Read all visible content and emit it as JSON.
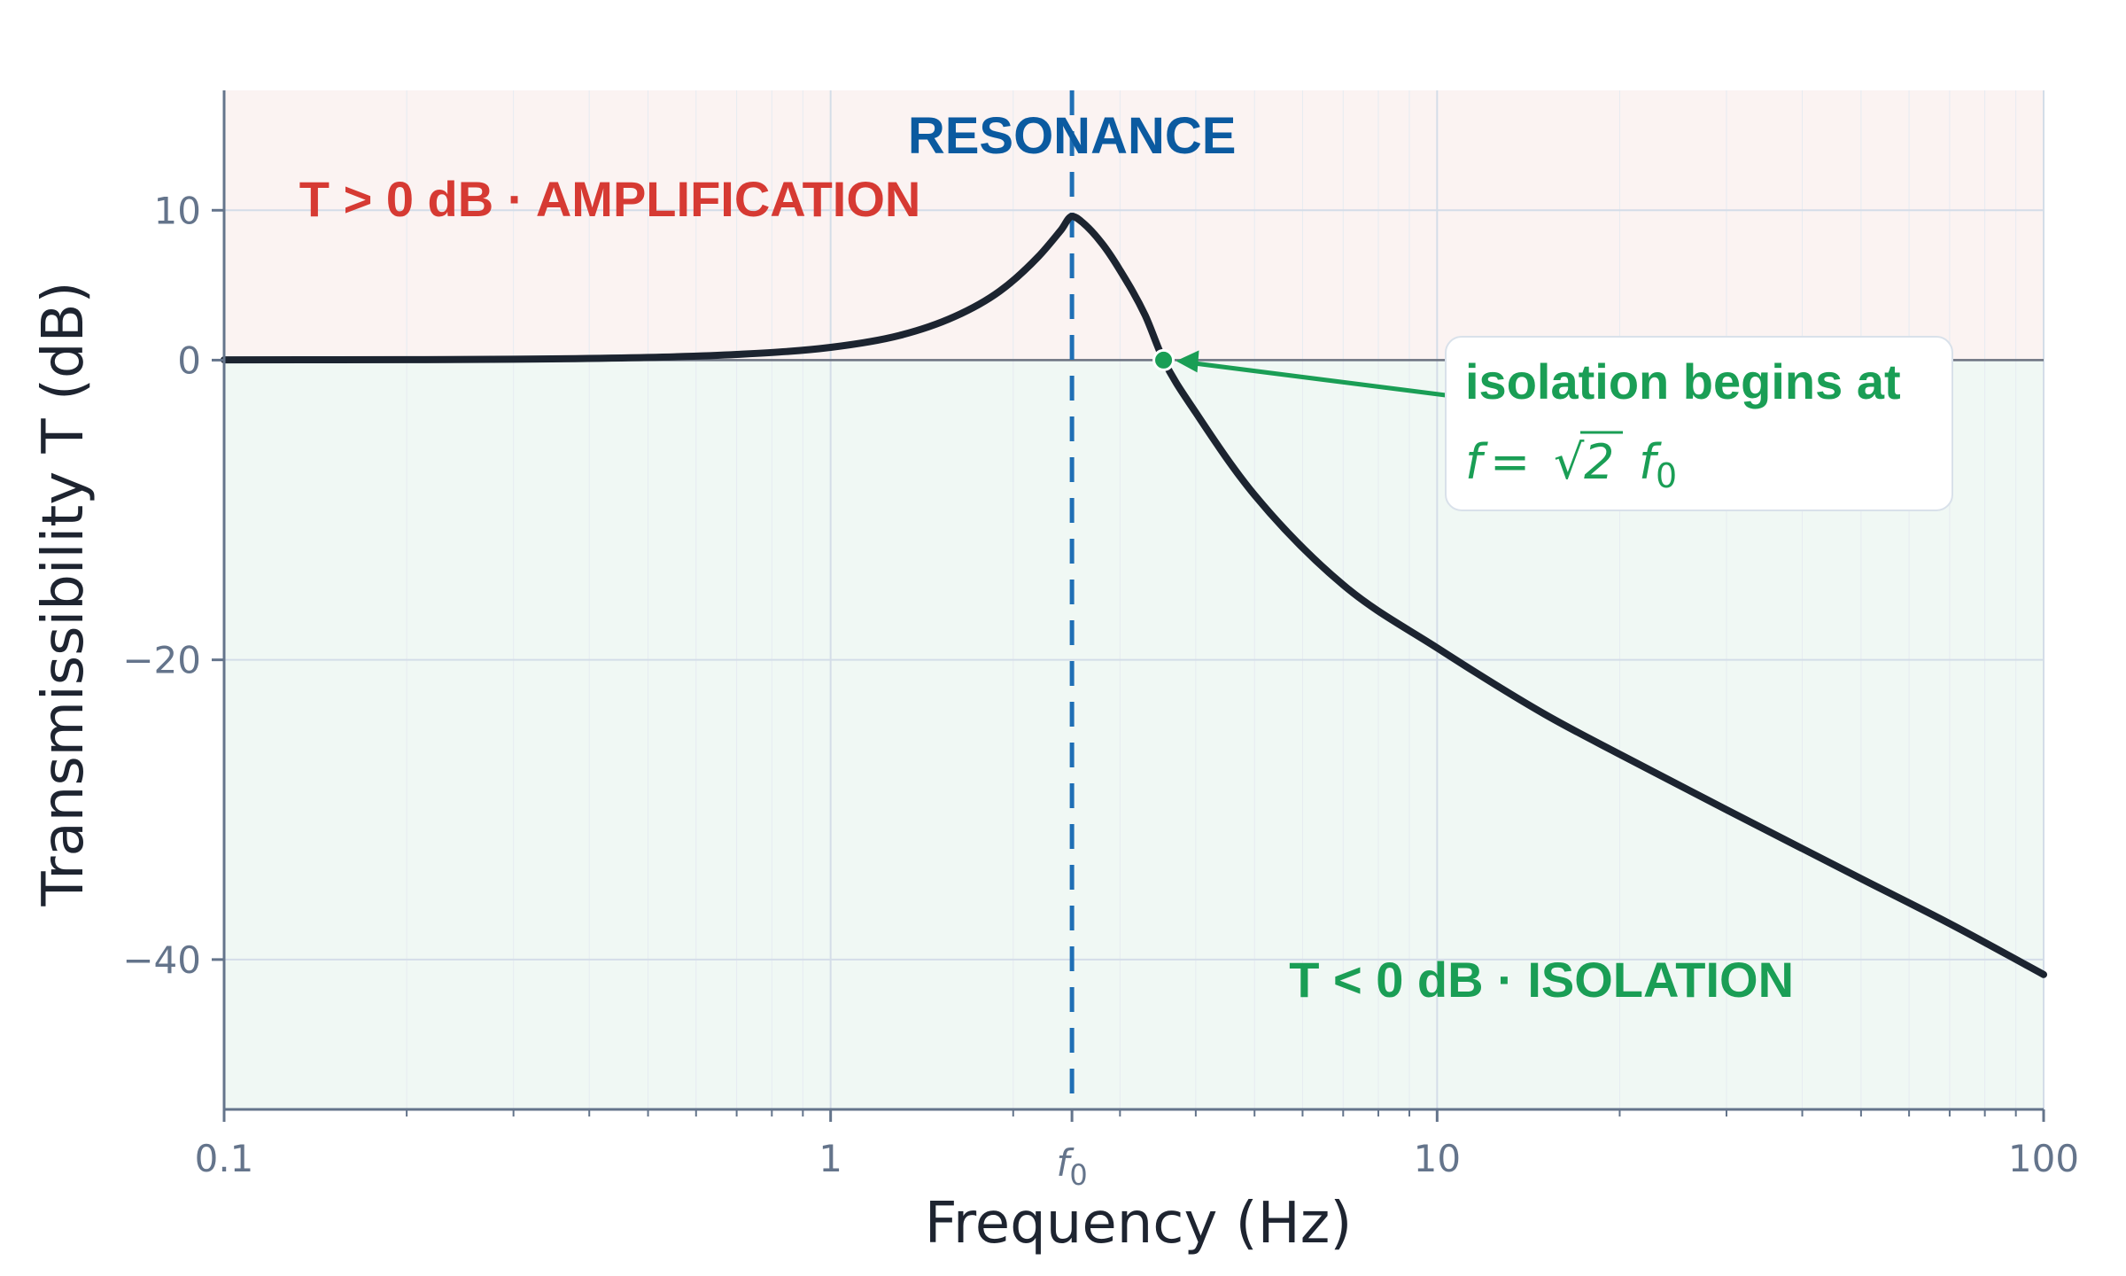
{
  "chart_data": {
    "type": "line",
    "xlabel": "Frequency (Hz)",
    "ylabel": "Transmissibility T (dB)",
    "x_scale": "log",
    "xlim": [
      0.1,
      100
    ],
    "ylim": [
      -50,
      18
    ],
    "x_ticks": [
      {
        "value": 0.1,
        "label": "0.1"
      },
      {
        "value": 1,
        "label": "1"
      },
      {
        "value": 10,
        "label": "10"
      },
      {
        "value": 100,
        "label": "100"
      }
    ],
    "f0_tick": {
      "value": 2.5,
      "label": "f",
      "subscript": "0"
    },
    "y_ticks": [
      {
        "value": 10,
        "label": "10"
      },
      {
        "value": 0,
        "label": "0"
      },
      {
        "value": -20,
        "label": "−20"
      },
      {
        "value": -40,
        "label": "−40"
      }
    ],
    "grid": true,
    "series": [
      {
        "name": "",
        "x": [
          0.1,
          0.2,
          0.3,
          0.5,
          0.7,
          1.0,
          1.3,
          1.6,
          1.9,
          2.2,
          2.4,
          2.5,
          2.6,
          2.8,
          3.0,
          3.3,
          3.54,
          4.0,
          5.0,
          7.0,
          10.0,
          15.0,
          20.0,
          30.0,
          50.0,
          70.0,
          100.0
        ],
        "y": [
          0.02,
          0.03,
          0.06,
          0.18,
          0.38,
          0.85,
          1.65,
          2.9,
          4.6,
          6.9,
          8.7,
          9.6,
          9.2,
          7.8,
          6.0,
          3.0,
          0.0,
          -3.5,
          -9.0,
          -15.0,
          -19.2,
          -23.6,
          -26.3,
          -30.0,
          -34.6,
          -37.6,
          -41.0
        ],
        "color": "#1c2430"
      }
    ],
    "regions": [
      {
        "label": "T > 0 dB  ·  AMPLIFICATION",
        "y_from": 0,
        "y_to": 18,
        "fill": "#fbf3f2",
        "text_color": "#d63a33"
      },
      {
        "label": "T < 0 dB  ·  ISOLATION",
        "y_from": -50,
        "y_to": 0,
        "fill": "#f0f8f4",
        "text_color": "#1a9e55"
      }
    ],
    "resonance": {
      "x": 2.5,
      "label": "RESONANCE",
      "color": "#0b5aa0"
    },
    "annotation": {
      "point": {
        "x": 3.54,
        "y": 0
      },
      "line1": "isolation begins at",
      "math_f": "f",
      "math_eq": " = ",
      "math_sqrt_sign": "√",
      "math_sqrt_arg": "2",
      "math_f0": "f",
      "math_f0_sub": "0",
      "color": "#1a9e55"
    },
    "colors": {
      "axis": "#64748b",
      "grid": "#d4dde8",
      "zero_line": "#6b7280"
    }
  }
}
